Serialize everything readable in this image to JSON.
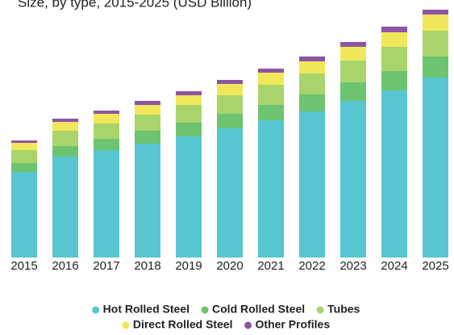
{
  "chart_data": {
    "type": "stacked-bar",
    "title": "Size, by type, 2015-2025 (USD Billion)",
    "categories": [
      "2015",
      "2016",
      "2017",
      "2018",
      "2019",
      "2020",
      "2021",
      "2022",
      "2023",
      "2024",
      "2025"
    ],
    "ylim": [
      0,
      320
    ],
    "series": [
      {
        "name": "Hot Rolled Steel",
        "color": "#57c6d0",
        "values": [
          106,
          125,
          133,
          141,
          150,
          160,
          170,
          181,
          194,
          207,
          223
        ]
      },
      {
        "name": "Cold Rolled Steel",
        "color": "#6cc470",
        "values": [
          11,
          13,
          14,
          16,
          17,
          18,
          19,
          21,
          23,
          24,
          26
        ]
      },
      {
        "name": "Tubes",
        "color": "#a9d46b",
        "values": [
          16,
          19,
          19,
          20,
          22,
          23,
          25,
          26,
          27,
          30,
          32
        ]
      },
      {
        "name": "Direct Rolled Steel",
        "color": "#f0e85a",
        "values": [
          9,
          11,
          12,
          12,
          12,
          14,
          15,
          15,
          17,
          18,
          20
        ]
      },
      {
        "name": "Other Profiles",
        "color": "#8e55a3",
        "values": [
          3,
          4,
          4,
          5,
          5,
          5,
          5,
          6,
          6,
          7,
          6
        ]
      }
    ]
  }
}
